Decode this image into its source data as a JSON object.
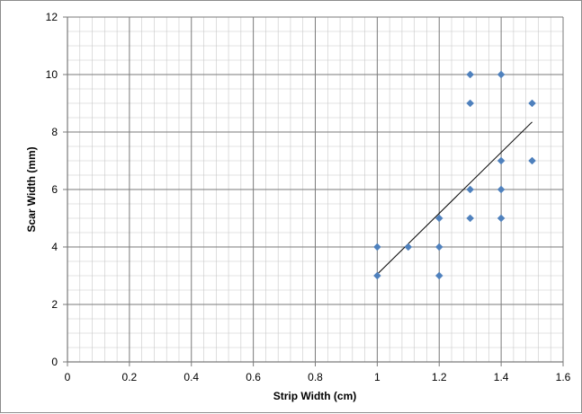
{
  "chart_data": {
    "type": "scatter",
    "title": "",
    "xlabel": "Strip Width  (cm)",
    "ylabel": "Scar Width (mm)",
    "xlim": [
      0,
      1.6
    ],
    "ylim": [
      0,
      12
    ],
    "x_major_ticks": [
      0,
      0.2,
      0.4,
      0.6,
      0.8,
      1,
      1.2,
      1.4,
      1.6
    ],
    "y_major_ticks": [
      0,
      2,
      4,
      6,
      8,
      10,
      12
    ],
    "x_tick_labels": [
      "0",
      "0.2",
      "0.4",
      "0.6",
      "0.8",
      "1",
      "1.2",
      "1.4",
      "1.6"
    ],
    "y_tick_labels": [
      "0",
      "2",
      "4",
      "6",
      "8",
      "10",
      "12"
    ],
    "grid": true,
    "legend": "none",
    "marker": "diamond",
    "marker_color": "#4f81bd",
    "series": [
      {
        "points": [
          {
            "x": 1.0,
            "y": 3
          },
          {
            "x": 1.0,
            "y": 4
          },
          {
            "x": 1.1,
            "y": 4
          },
          {
            "x": 1.2,
            "y": 3
          },
          {
            "x": 1.2,
            "y": 4
          },
          {
            "x": 1.2,
            "y": 5
          },
          {
            "x": 1.3,
            "y": 5
          },
          {
            "x": 1.3,
            "y": 6
          },
          {
            "x": 1.3,
            "y": 9
          },
          {
            "x": 1.3,
            "y": 10
          },
          {
            "x": 1.4,
            "y": 5
          },
          {
            "x": 1.4,
            "y": 6
          },
          {
            "x": 1.4,
            "y": 7
          },
          {
            "x": 1.4,
            "y": 10
          },
          {
            "x": 1.5,
            "y": 7
          },
          {
            "x": 1.5,
            "y": 9
          }
        ]
      }
    ],
    "trendline": {
      "type": "linear",
      "x_start": 1.0,
      "y_start": 3.05,
      "x_end": 1.5,
      "y_end": 8.35,
      "color": "#000000"
    }
  }
}
